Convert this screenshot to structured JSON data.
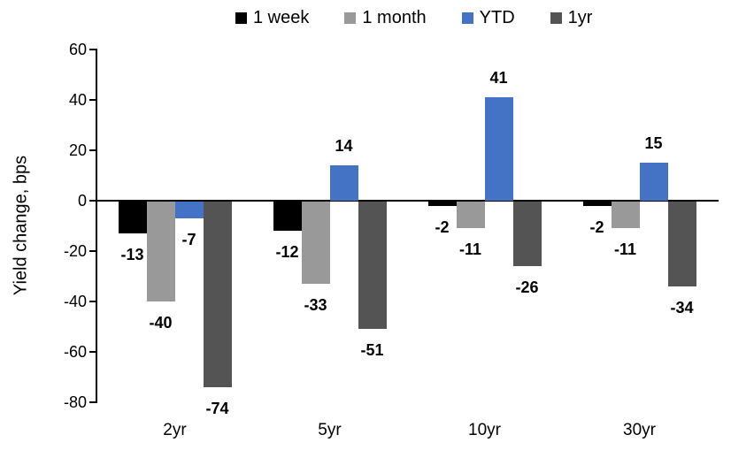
{
  "chart_data": {
    "type": "bar",
    "title": "",
    "ylabel": "Yield change, bps",
    "xlabel": "",
    "ylim": [
      -80,
      60
    ],
    "ytick_step": 20,
    "yticks": [
      60,
      40,
      20,
      0,
      -20,
      -40,
      -60,
      -80
    ],
    "categories": [
      "2yr",
      "5yr",
      "10yr",
      "30yr"
    ],
    "series": [
      {
        "name": "1 week",
        "color": "#000000",
        "values": [
          -13,
          -12,
          -2,
          -2
        ]
      },
      {
        "name": "1 month",
        "color": "#999999",
        "values": [
          -40,
          -33,
          -11,
          -11
        ]
      },
      {
        "name": "YTD",
        "color": "#4472C4",
        "values": [
          -7,
          14,
          41,
          15
        ]
      },
      {
        "name": "1yr",
        "color": "#545454",
        "values": [
          -74,
          -51,
          -26,
          -34
        ]
      }
    ],
    "legend_position": "top",
    "legend_labels": [
      "1 week",
      "1 month",
      "YTD",
      "1yr"
    ],
    "grid": false,
    "data_labels": true,
    "axis_color": "#000000",
    "background_color": "#ffffff"
  }
}
